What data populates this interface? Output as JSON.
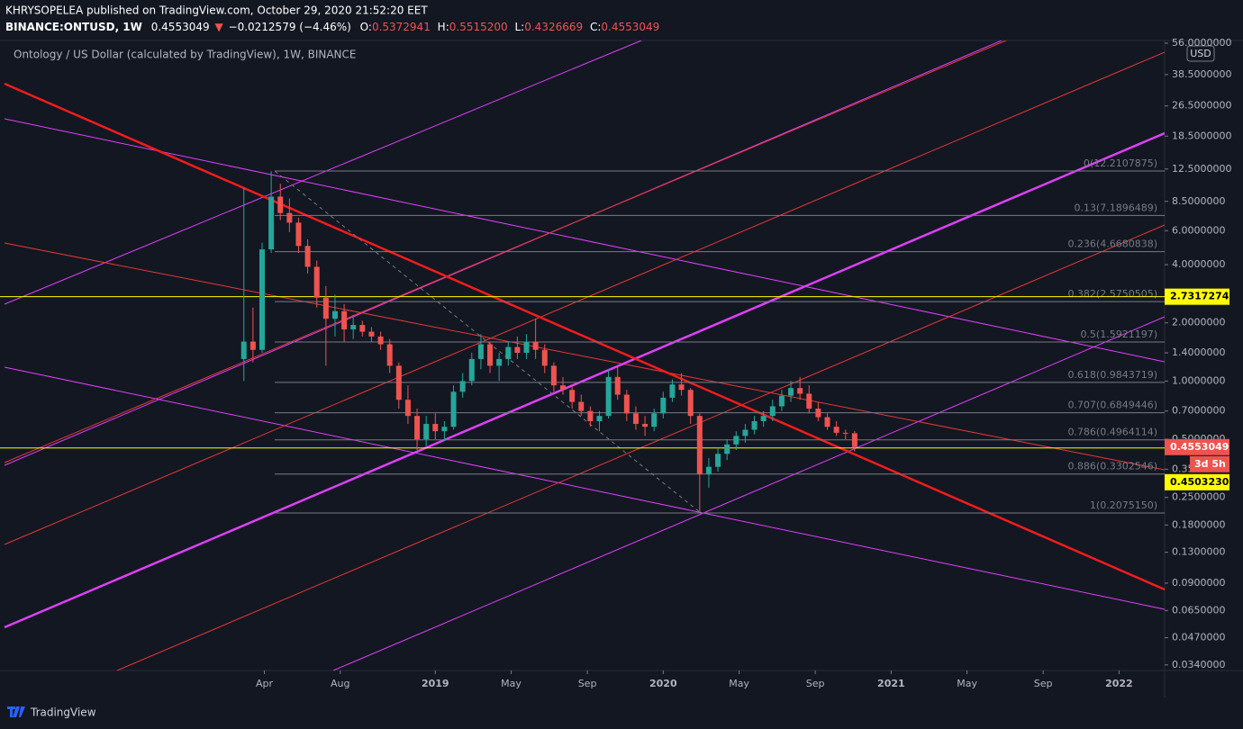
{
  "header": {
    "published": "KHRYSOPELEA published on TradingView.com, October 29, 2020 21:52:20 EET",
    "symbol": "BINANCE:ONTUSD, 1W",
    "last": "0.4553049",
    "arrow": "▼",
    "change": "−0.0212579 (−4.46%)",
    "ohlc": [
      {
        "key": "O:",
        "value": "0.5372941"
      },
      {
        "key": "H:",
        "value": "0.5515200"
      },
      {
        "key": "L:",
        "value": "0.4326669"
      },
      {
        "key": "C:",
        "value": "0.4553049"
      }
    ]
  },
  "footer": {
    "brand": "TradingView"
  },
  "chart_data": {
    "type": "candlestick",
    "title": "Ontology / US Dollar (calculated by TradingView), 1W, BINANCE",
    "y_label": "USD",
    "log_scale": true,
    "grid": false,
    "up_color": "#26a69a",
    "down_color": "#ef5350",
    "xlim": [
      2017.09,
      2022.2
    ],
    "xticks": [
      {
        "value": 2018.25,
        "label": "Apr"
      },
      {
        "value": 2018.583,
        "label": "Aug"
      },
      2019,
      {
        "value": 2019.333,
        "label": "May"
      },
      {
        "value": 2019.667,
        "label": "Sep"
      },
      2020,
      {
        "value": 2020.333,
        "label": "May"
      },
      {
        "value": 2020.667,
        "label": "Sep"
      },
      2021,
      {
        "value": 2021.333,
        "label": "May"
      },
      {
        "value": 2021.667,
        "label": "Sep"
      },
      2022
    ],
    "ylim": [
      0.0318,
      57.8
    ],
    "yticks": [
      {
        "value": 56,
        "label": "56.0000000"
      },
      {
        "value": 38.5,
        "label": "38.5000000"
      },
      {
        "value": 26.5,
        "label": "26.5000000"
      },
      {
        "value": 18.5,
        "label": "18.5000000"
      },
      {
        "value": 12.5,
        "label": "12.5000000"
      },
      {
        "value": 8.5,
        "label": "8.5000000"
      },
      {
        "value": 6,
        "label": "6.0000000"
      },
      {
        "value": 4,
        "label": "4.0000000"
      },
      {
        "value": 2,
        "label": "2.0000000"
      },
      {
        "value": 1.4,
        "label": "1.4000000"
      },
      {
        "value": 1,
        "label": "1.0000000"
      },
      {
        "value": 0.7,
        "label": "0.7000000"
      },
      {
        "value": 0.5,
        "label": "0.5000000"
      },
      {
        "value": 0.35,
        "label": "0.3500000"
      },
      {
        "value": 0.25,
        "label": "0.2500000"
      },
      {
        "value": 0.18,
        "label": "0.1800000"
      },
      {
        "value": 0.13,
        "label": "0.1300000"
      },
      {
        "value": 0.09,
        "label": "0.0900000"
      },
      {
        "value": 0.065,
        "label": "0.0650000"
      },
      {
        "value": 0.047,
        "label": "0.0470000"
      },
      {
        "value": 0.034,
        "label": "0.0340000"
      }
    ],
    "x": [
      2018.16,
      2018.2,
      2018.24,
      2018.28,
      2018.32,
      2018.36,
      2018.4,
      2018.44,
      2018.48,
      2018.52,
      2018.56,
      2018.6,
      2018.64,
      2018.68,
      2018.72,
      2018.76,
      2018.8,
      2018.84,
      2018.88,
      2018.92,
      2018.96,
      2019.0,
      2019.04,
      2019.08,
      2019.12,
      2019.16,
      2019.2,
      2019.24,
      2019.28,
      2019.32,
      2019.36,
      2019.4,
      2019.44,
      2019.48,
      2019.52,
      2019.56,
      2019.6,
      2019.64,
      2019.68,
      2019.72,
      2019.76,
      2019.8,
      2019.84,
      2019.88,
      2019.92,
      2019.96,
      2020.0,
      2020.04,
      2020.08,
      2020.12,
      2020.16,
      2020.2,
      2020.24,
      2020.28,
      2020.32,
      2020.36,
      2020.4,
      2020.44,
      2020.48,
      2020.52,
      2020.56,
      2020.6,
      2020.64,
      2020.68,
      2020.72,
      2020.76,
      2020.8,
      2020.84
    ],
    "open": [
      1.3,
      1.6,
      1.45,
      4.8,
      9.0,
      7.4,
      6.6,
      5.0,
      3.9,
      2.7,
      2.1,
      2.3,
      1.85,
      1.95,
      1.8,
      1.7,
      1.55,
      1.2,
      0.8,
      0.66,
      0.5,
      0.6,
      0.55,
      0.58,
      0.88,
      1.0,
      1.3,
      1.55,
      1.2,
      1.3,
      1.5,
      1.4,
      1.6,
      1.45,
      1.2,
      0.95,
      0.9,
      0.78,
      0.7,
      0.62,
      0.66,
      1.05,
      0.85,
      0.68,
      0.6,
      0.58,
      0.68,
      0.82,
      0.96,
      0.9,
      0.66,
      0.33,
      0.36,
      0.42,
      0.47,
      0.52,
      0.56,
      0.62,
      0.66,
      0.74,
      0.84,
      0.92,
      0.86,
      0.72,
      0.65,
      0.58,
      0.54,
      0.5372941
    ],
    "high": [
      10.0,
      2.4,
      5.2,
      12.2,
      10.5,
      8.8,
      7.0,
      5.4,
      4.2,
      3.1,
      2.8,
      2.5,
      2.2,
      2.05,
      1.9,
      1.8,
      1.65,
      1.25,
      0.95,
      0.72,
      0.66,
      0.68,
      0.62,
      0.95,
      1.1,
      1.4,
      1.75,
      1.6,
      1.4,
      1.6,
      1.7,
      1.75,
      2.1,
      1.55,
      1.25,
      1.05,
      0.95,
      0.85,
      0.74,
      0.7,
      1.15,
      1.2,
      0.9,
      0.74,
      0.66,
      0.72,
      0.88,
      1.02,
      1.1,
      0.92,
      0.68,
      0.4,
      0.45,
      0.5,
      0.55,
      0.6,
      0.66,
      0.7,
      0.8,
      0.9,
      1.0,
      1.05,
      0.95,
      0.78,
      0.68,
      0.62,
      0.56,
      0.55152
    ],
    "low": [
      1.0,
      1.25,
      1.4,
      4.6,
      6.8,
      5.9,
      4.6,
      3.6,
      2.4,
      1.2,
      1.7,
      1.6,
      1.65,
      1.7,
      1.6,
      1.45,
      1.1,
      0.72,
      0.6,
      0.44,
      0.46,
      0.5,
      0.49,
      0.56,
      0.82,
      0.95,
      1.15,
      1.1,
      1.0,
      1.2,
      1.3,
      1.3,
      1.3,
      1.1,
      0.88,
      0.85,
      0.72,
      0.66,
      0.58,
      0.55,
      0.64,
      0.8,
      0.62,
      0.56,
      0.52,
      0.55,
      0.64,
      0.78,
      0.84,
      0.6,
      0.21,
      0.28,
      0.34,
      0.39,
      0.44,
      0.48,
      0.53,
      0.58,
      0.62,
      0.7,
      0.78,
      0.8,
      0.68,
      0.62,
      0.56,
      0.52,
      0.5,
      0.4326669
    ],
    "close": [
      1.6,
      1.45,
      4.8,
      9.0,
      7.4,
      6.6,
      5.0,
      3.9,
      2.7,
      2.1,
      2.3,
      1.85,
      1.95,
      1.8,
      1.7,
      1.55,
      1.2,
      0.8,
      0.66,
      0.5,
      0.6,
      0.55,
      0.58,
      0.88,
      1.0,
      1.3,
      1.55,
      1.2,
      1.3,
      1.5,
      1.4,
      1.6,
      1.45,
      1.2,
      0.95,
      0.9,
      0.78,
      0.7,
      0.62,
      0.66,
      1.05,
      0.85,
      0.68,
      0.6,
      0.58,
      0.68,
      0.82,
      0.96,
      0.9,
      0.66,
      0.33,
      0.36,
      0.42,
      0.47,
      0.52,
      0.56,
      0.62,
      0.66,
      0.74,
      0.84,
      0.92,
      0.86,
      0.72,
      0.65,
      0.58,
      0.54,
      0.5373,
      0.4553049
    ],
    "fib": {
      "color": "#787b86",
      "levels": [
        {
          "value": 12.2107875,
          "label": "0(12.2107875)"
        },
        {
          "value": 7.1896489,
          "label": "0.13(7.1896489)"
        },
        {
          "value": 4.6680838,
          "label": "0.236(4.6680838)"
        },
        {
          "value": 2.5750505,
          "label": "0.382(2.5750505)"
        },
        {
          "value": 1.5921197,
          "label": "0.5(1.5921197)"
        },
        {
          "value": 0.9843719,
          "label": "0.618(0.9843719)"
        },
        {
          "value": 0.6849446,
          "label": "0.707(0.6849446)"
        },
        {
          "value": 0.4964114,
          "label": "0.786(0.4964114)"
        },
        {
          "value": 0.3302546,
          "label": "0.886(0.3302546)"
        },
        {
          "value": 0.207515,
          "label": "1(0.2075150)"
        }
      ]
    },
    "hlines": {
      "color": "#ffff00",
      "values": [
        2.7317274,
        0.450323
      ]
    },
    "price_labels": [
      {
        "value": 2.7317274,
        "label": "2.7317274",
        "color": "#ffff00"
      },
      {
        "value": 0.4553049,
        "label": "0.4553049",
        "color": "#ef5350"
      },
      {
        "value": 0.450323,
        "label": "0.4503230",
        "color": "#ffff00"
      }
    ],
    "countdown": "3d 5h"
  }
}
